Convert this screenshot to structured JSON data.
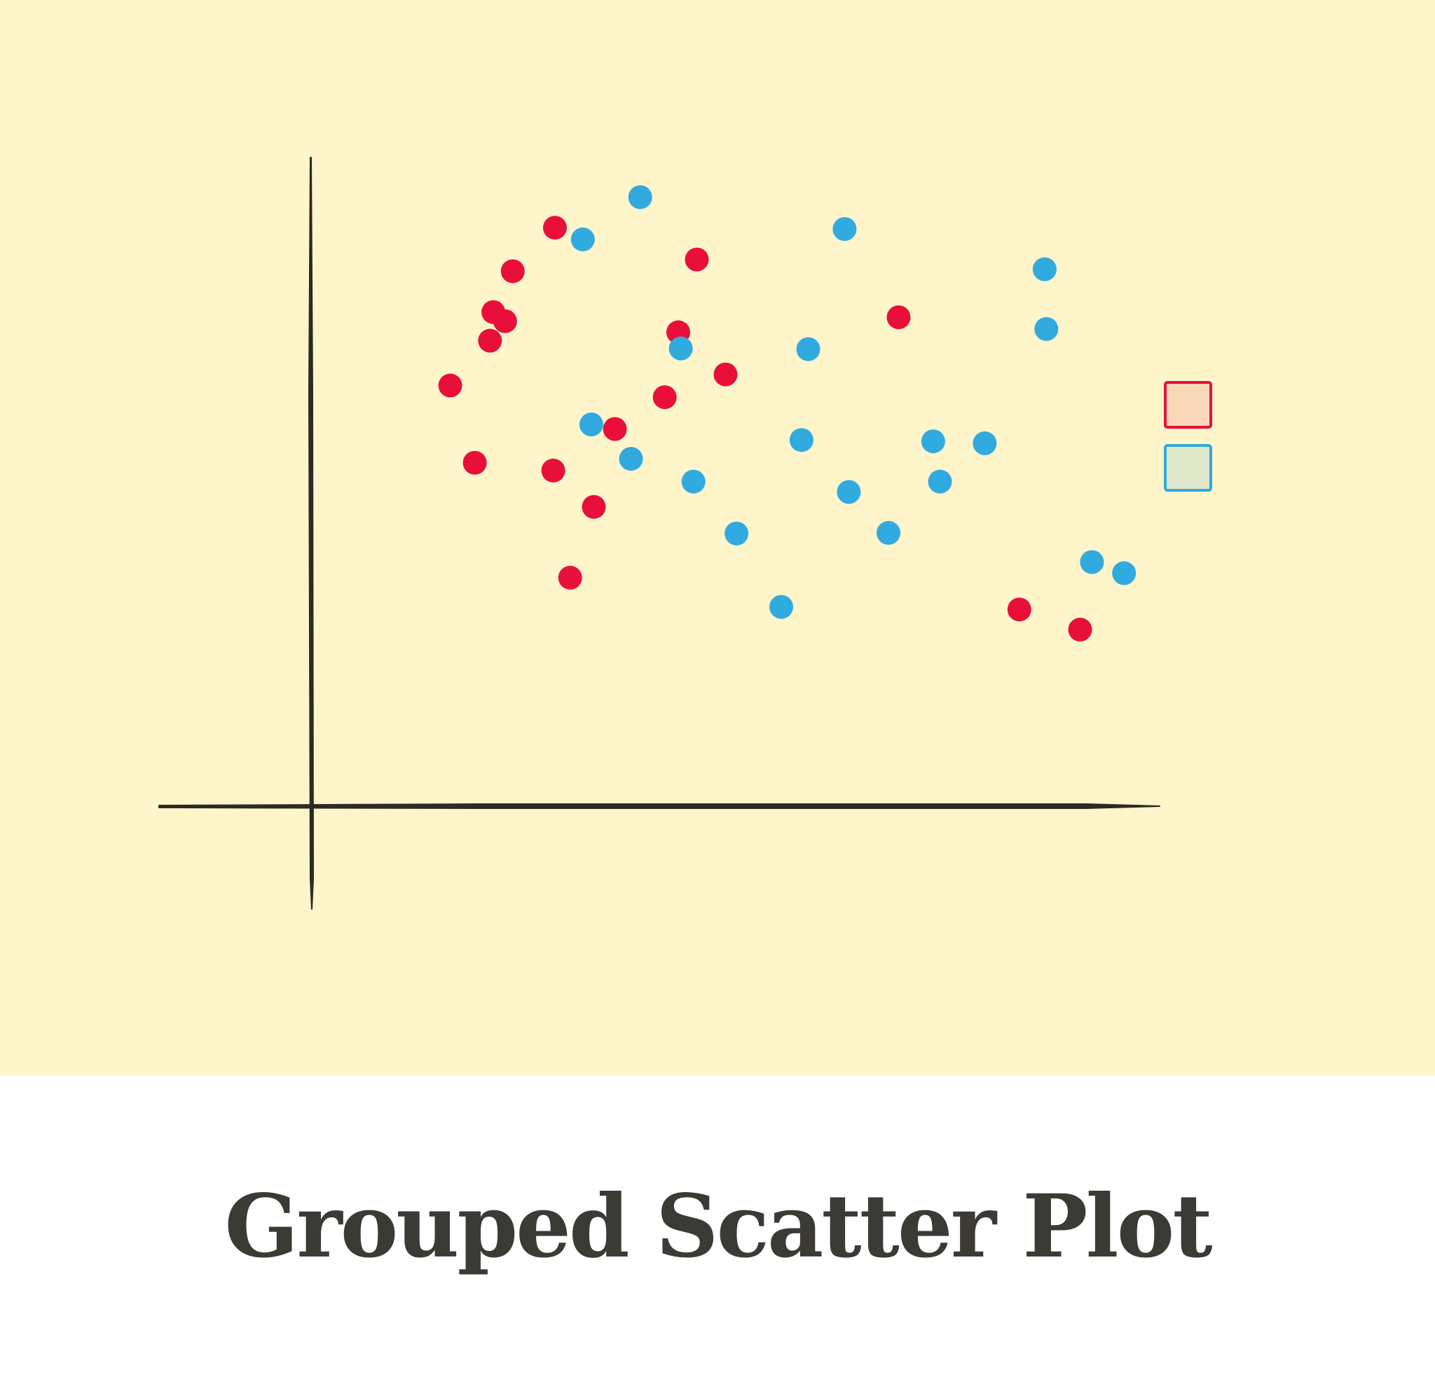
{
  "caption": "Grouped Scatter Plot",
  "colors": {
    "background": "#fef5cb",
    "axis": "#2d2a24",
    "caption": "#3c3a34",
    "group_a": "#e8103a",
    "group_b": "#30aadf",
    "legend_a_fill": "#f9d7b9",
    "legend_b_fill": "#e0e8cc"
  },
  "chart_data": {
    "type": "scatter",
    "title": "",
    "xlabel": "",
    "ylabel": "",
    "xlim": [
      0,
      100
    ],
    "ylim": [
      0,
      100
    ],
    "grid": false,
    "legend": "right, swatches only",
    "series": [
      {
        "x": [
          16.4,
          21.1,
          22.9,
          21.5,
          23.8,
          28.8,
          19.3,
          35.9,
          28.6,
          41.8,
          30.6,
          33.4,
          43.4,
          49.0,
          45.6,
          69.5,
          83.8,
          91.0
        ],
        "y": [
          64.9,
          71.8,
          74.8,
          76.2,
          82.5,
          89.2,
          53.0,
          58.2,
          51.8,
          63.1,
          35.3,
          46.2,
          73.1,
          66.6,
          84.3,
          75.4,
          30.4,
          27.3
        ]
      },
      {
        "x": [
          33.1,
          32.1,
          37.8,
          38.9,
          43.7,
          45.2,
          50.3,
          58.0,
          63.6,
          74.4,
          73.6,
          79.7,
          87.0,
          86.8,
          96.2,
          58.8,
          55.6,
          68.3,
          92.4,
          63.1
        ],
        "y": [
          58.9,
          87.4,
          53.6,
          93.9,
          70.6,
          50.1,
          42.1,
          56.5,
          48.5,
          50.1,
          56.3,
          56.0,
          73.6,
          82.8,
          36.0,
          70.5,
          30.8,
          42.2,
          37.7,
          89.0
        ]
      }
    ]
  }
}
